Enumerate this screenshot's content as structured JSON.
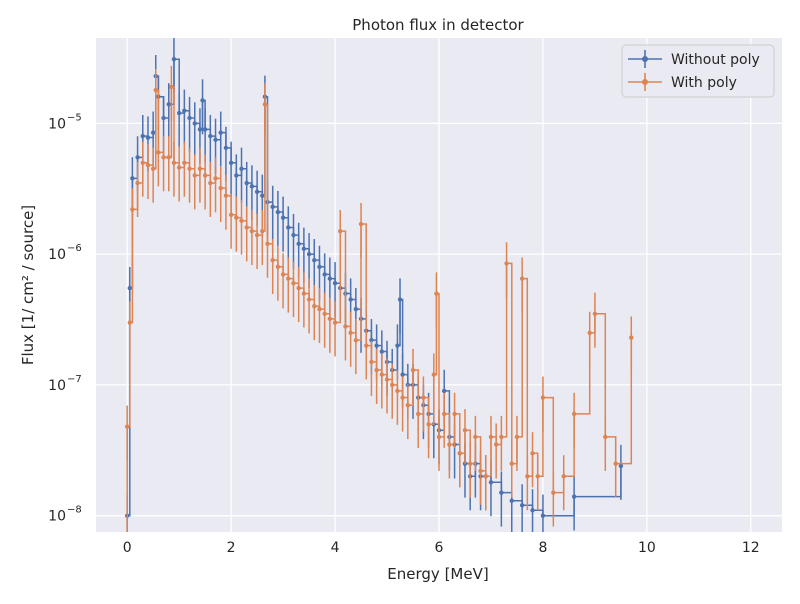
{
  "chart_data": {
    "type": "line",
    "title": "Photon flux in detector",
    "xlabel": "Energy [MeV]",
    "ylabel": "Flux [1/ cm² / source]",
    "xlim": [
      -0.6,
      12.6
    ],
    "ylim": [
      7.5e-09,
      4.5e-05
    ],
    "yscale": "log",
    "grid": true,
    "legend_position": "top-right",
    "x_ticks": [
      0,
      2,
      4,
      6,
      8,
      10,
      12
    ],
    "x_tick_labels": [
      "0",
      "2",
      "4",
      "6",
      "8",
      "10",
      "12"
    ],
    "y_ticks": [
      1e-08,
      1e-07,
      1e-06,
      1e-05
    ],
    "y_tick_labels": [
      {
        "base": "10",
        "exp": "−8"
      },
      {
        "base": "10",
        "exp": "−7"
      },
      {
        "base": "10",
        "exp": "−6"
      },
      {
        "base": "10",
        "exp": "−5"
      }
    ],
    "series": [
      {
        "name": "Without poly",
        "color": "#4c72b0",
        "points": [
          [
            0.0,
            1e-08
          ],
          [
            0.05,
            5.5e-07
          ],
          [
            0.1,
            3.8e-06
          ],
          [
            0.2,
            5.5e-06
          ],
          [
            0.3,
            8e-06
          ],
          [
            0.4,
            7.8e-06
          ],
          [
            0.5,
            8.5e-06
          ],
          [
            0.55,
            2.3e-05
          ],
          [
            0.6,
            1.6e-05
          ],
          [
            0.7,
            1.1e-05
          ],
          [
            0.8,
            1.4e-05
          ],
          [
            0.9,
            3.1e-05
          ],
          [
            1.0,
            1.2e-05
          ],
          [
            1.1,
            1.25e-05
          ],
          [
            1.2,
            1.1e-05
          ],
          [
            1.3,
            1e-05
          ],
          [
            1.4,
            9e-06
          ],
          [
            1.45,
            1.5e-05
          ],
          [
            1.5,
            9e-06
          ],
          [
            1.6,
            8e-06
          ],
          [
            1.7,
            7.5e-06
          ],
          [
            1.8,
            8.5e-06
          ],
          [
            1.9,
            6.5e-06
          ],
          [
            2.0,
            5e-06
          ],
          [
            2.1,
            4e-06
          ],
          [
            2.2,
            4.5e-06
          ],
          [
            2.3,
            3.5e-06
          ],
          [
            2.4,
            3.3e-06
          ],
          [
            2.5,
            3e-06
          ],
          [
            2.6,
            2.8e-06
          ],
          [
            2.65,
            1.6e-05
          ],
          [
            2.7,
            2.5e-06
          ],
          [
            2.8,
            2.3e-06
          ],
          [
            2.9,
            2.1e-06
          ],
          [
            3.0,
            1.9e-06
          ],
          [
            3.1,
            1.6e-06
          ],
          [
            3.2,
            1.4e-06
          ],
          [
            3.3,
            1.2e-06
          ],
          [
            3.4,
            1.1e-06
          ],
          [
            3.5,
            1e-06
          ],
          [
            3.6,
            9e-07
          ],
          [
            3.7,
            8e-07
          ],
          [
            3.8,
            7e-07
          ],
          [
            3.9,
            6.5e-07
          ],
          [
            4.0,
            6e-07
          ],
          [
            4.1,
            5.5e-07
          ],
          [
            4.2,
            5e-07
          ],
          [
            4.3,
            4.5e-07
          ],
          [
            4.4,
            3.8e-07
          ],
          [
            4.5,
            3.2e-07
          ],
          [
            4.6,
            2.6e-07
          ],
          [
            4.7,
            2.2e-07
          ],
          [
            4.8,
            2e-07
          ],
          [
            4.9,
            1.8e-07
          ],
          [
            5.0,
            1.5e-07
          ],
          [
            5.1,
            1.3e-07
          ],
          [
            5.2,
            2e-07
          ],
          [
            5.25,
            4.5e-07
          ],
          [
            5.3,
            1.2e-07
          ],
          [
            5.4,
            1e-07
          ],
          [
            5.5,
            1e-07
          ],
          [
            5.6,
            8e-08
          ],
          [
            5.7,
            7e-08
          ],
          [
            5.8,
            6e-08
          ],
          [
            5.9,
            5e-08
          ],
          [
            6.0,
            4.5e-08
          ],
          [
            6.1,
            9e-08
          ],
          [
            6.2,
            4e-08
          ],
          [
            6.3,
            3.5e-08
          ],
          [
            6.4,
            3e-08
          ],
          [
            6.5,
            2.5e-08
          ],
          [
            6.6,
            2e-08
          ],
          [
            6.7,
            2.5e-08
          ],
          [
            6.8,
            2e-08
          ],
          [
            6.9,
            2e-08
          ],
          [
            7.0,
            1.8e-08
          ],
          [
            7.2,
            1.5e-08
          ],
          [
            7.4,
            1.3e-08
          ],
          [
            7.6,
            1.2e-08
          ],
          [
            7.8,
            1.1e-08
          ],
          [
            8.0,
            1e-08
          ],
          [
            8.6,
            1.4e-08
          ],
          [
            9.5,
            2.4e-08
          ]
        ]
      },
      {
        "name": "With poly",
        "color": "#dd8452",
        "points": [
          [
            0.0,
            4.8e-08
          ],
          [
            0.05,
            3e-07
          ],
          [
            0.1,
            2.2e-06
          ],
          [
            0.2,
            3.5e-06
          ],
          [
            0.3,
            5e-06
          ],
          [
            0.4,
            4.8e-06
          ],
          [
            0.5,
            4.5e-06
          ],
          [
            0.55,
            1.8e-05
          ],
          [
            0.6,
            6e-06
          ],
          [
            0.7,
            5.5e-06
          ],
          [
            0.8,
            5.5e-06
          ],
          [
            0.85,
            1.9e-05
          ],
          [
            0.9,
            5e-06
          ],
          [
            1.0,
            4.6e-06
          ],
          [
            1.1,
            5e-06
          ],
          [
            1.2,
            4.5e-06
          ],
          [
            1.3,
            4e-06
          ],
          [
            1.4,
            4.5e-06
          ],
          [
            1.5,
            4e-06
          ],
          [
            1.6,
            3.5e-06
          ],
          [
            1.7,
            3.8e-06
          ],
          [
            1.8,
            3.2e-06
          ],
          [
            1.9,
            2.8e-06
          ],
          [
            2.0,
            2e-06
          ],
          [
            2.1,
            1.9e-06
          ],
          [
            2.2,
            1.8e-06
          ],
          [
            2.3,
            1.6e-06
          ],
          [
            2.4,
            1.5e-06
          ],
          [
            2.5,
            1.4e-06
          ],
          [
            2.6,
            1.5e-06
          ],
          [
            2.65,
            1.4e-05
          ],
          [
            2.7,
            1.2e-06
          ],
          [
            2.8,
            9e-07
          ],
          [
            2.9,
            8e-07
          ],
          [
            3.0,
            7e-07
          ],
          [
            3.1,
            6.5e-07
          ],
          [
            3.2,
            6e-07
          ],
          [
            3.3,
            5.5e-07
          ],
          [
            3.4,
            5e-07
          ],
          [
            3.5,
            4.5e-07
          ],
          [
            3.6,
            4e-07
          ],
          [
            3.7,
            3.8e-07
          ],
          [
            3.8,
            3.5e-07
          ],
          [
            3.9,
            3.2e-07
          ],
          [
            4.0,
            3e-07
          ],
          [
            4.1,
            1.5e-06
          ],
          [
            4.2,
            2.8e-07
          ],
          [
            4.3,
            2.5e-07
          ],
          [
            4.4,
            2.2e-07
          ],
          [
            4.5,
            1.7e-06
          ],
          [
            4.6,
            2e-07
          ],
          [
            4.7,
            1.5e-07
          ],
          [
            4.8,
            1.3e-07
          ],
          [
            4.9,
            1.2e-07
          ],
          [
            5.0,
            1.1e-07
          ],
          [
            5.1,
            1e-07
          ],
          [
            5.2,
            9e-08
          ],
          [
            5.3,
            8e-08
          ],
          [
            5.4,
            7e-08
          ],
          [
            5.5,
            1.3e-07
          ],
          [
            5.6,
            6e-08
          ],
          [
            5.7,
            8e-08
          ],
          [
            5.8,
            5e-08
          ],
          [
            5.9,
            1.2e-07
          ],
          [
            5.95,
            5e-07
          ],
          [
            6.0,
            4e-08
          ],
          [
            6.1,
            6e-08
          ],
          [
            6.2,
            3.5e-08
          ],
          [
            6.3,
            6e-08
          ],
          [
            6.4,
            3e-08
          ],
          [
            6.5,
            4.5e-08
          ],
          [
            6.6,
            2.5e-08
          ],
          [
            6.7,
            4e-08
          ],
          [
            6.8,
            2.2e-08
          ],
          [
            6.9,
            2e-08
          ],
          [
            7.0,
            4e-08
          ],
          [
            7.1,
            3.5e-08
          ],
          [
            7.2,
            4e-08
          ],
          [
            7.3,
            8.5e-07
          ],
          [
            7.4,
            2.5e-08
          ],
          [
            7.5,
            4e-08
          ],
          [
            7.6,
            6.5e-07
          ],
          [
            7.7,
            2e-08
          ],
          [
            7.8,
            3e-08
          ],
          [
            7.9,
            2e-08
          ],
          [
            8.0,
            8e-08
          ],
          [
            8.2,
            1.5e-08
          ],
          [
            8.4,
            2e-08
          ],
          [
            8.6,
            6e-08
          ],
          [
            8.9,
            2.5e-07
          ],
          [
            9.0,
            3.5e-07
          ],
          [
            9.2,
            4e-08
          ],
          [
            9.4,
            2.5e-08
          ],
          [
            9.7,
            2.3e-07
          ]
        ]
      }
    ]
  }
}
